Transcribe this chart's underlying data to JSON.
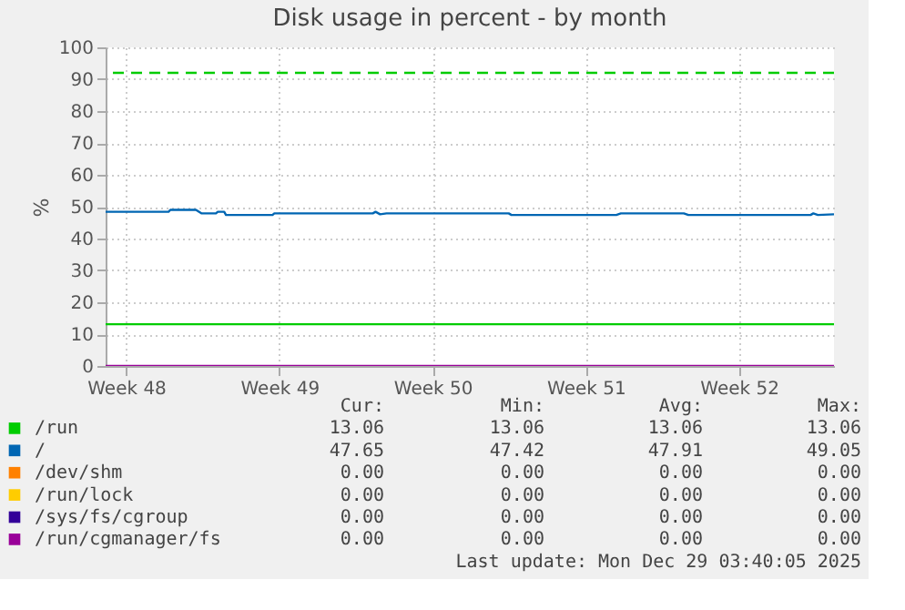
{
  "chart_data": {
    "type": "line",
    "title": "Disk usage in percent - by month",
    "ylabel": "%",
    "xlim": [
      "2025-11-25T21:00",
      "2025-12-29T03:40"
    ],
    "xticks": [
      {
        "value": "2025-11-26T19:30",
        "label": "Week 48"
      },
      {
        "value": "2025-12-03T19:30",
        "label": "Week 49"
      },
      {
        "value": "2025-12-10T19:30",
        "label": "Week 50"
      },
      {
        "value": "2025-12-17T19:30",
        "label": "Week 51"
      },
      {
        "value": "2025-12-24T19:30",
        "label": "Week 52"
      }
    ],
    "ylim": [
      0,
      100
    ],
    "yticks": [
      0,
      10,
      20,
      30,
      40,
      50,
      60,
      70,
      80,
      90,
      100
    ],
    "grid": true,
    "legend": "bottom",
    "series": [
      {
        "name": "/run",
        "color": "#00cc00",
        "x": [
          "2025-11-25T21:00",
          "2025-12-29T03:40"
        ],
        "values": [
          13.1,
          13.1
        ]
      },
      {
        "name": "/",
        "color": "#0066b3",
        "x": [
          "2025-11-25T21:00",
          "2025-11-28T18:00",
          "2025-11-28T20:00",
          "2025-11-30T00:00",
          "2025-11-30T06:00",
          "2025-11-30T22:00",
          "2025-12-01T00:00",
          "2025-12-01T07:00",
          "2025-12-01T09:00",
          "2025-12-03T12:00",
          "2025-12-03T14:00",
          "2025-12-08T02:00",
          "2025-12-08T05:00",
          "2025-12-08T10:00",
          "2025-12-08T17:00",
          "2025-12-14T07:00",
          "2025-12-14T10:00",
          "2025-12-19T05:00",
          "2025-12-19T10:00",
          "2025-12-22T07:00",
          "2025-12-22T12:00",
          "2025-12-28T02:00",
          "2025-12-28T05:00",
          "2025-12-28T10:00",
          "2025-12-29T03:40"
        ],
        "values": [
          48.4,
          48.4,
          49.0,
          49.0,
          47.9,
          47.9,
          48.4,
          48.4,
          47.4,
          47.4,
          47.9,
          47.9,
          48.4,
          47.6,
          47.9,
          47.9,
          47.4,
          47.4,
          47.9,
          47.9,
          47.4,
          47.4,
          47.9,
          47.4,
          47.6
        ]
      },
      {
        "name": "/dev/shm",
        "color": "#ff8000"
      },
      {
        "name": "/run/lock",
        "color": "#ffcc00"
      },
      {
        "name": "/sys/fs/cgroup",
        "color": "#330099"
      },
      {
        "name": "/run/cgmanager/fs",
        "color": "#990099",
        "x": [
          "2025-11-25T21:00",
          "2025-12-29T03:40"
        ],
        "values": [
          0,
          0
        ]
      }
    ],
    "ref_lines": [
      {
        "axis": "y",
        "value": 92,
        "color": "#00cc00",
        "line_style": "dashed"
      }
    ],
    "annotations": [
      "Cur:",
      "Min:",
      "Avg:",
      "Max:",
      "13.06",
      "13.06",
      "13.06",
      "13.06",
      "47.65",
      "47.42",
      "47.91",
      "49.05",
      "0.00",
      "0.00",
      "0.00",
      "0.00",
      "0.00",
      "0.00",
      "0.00",
      "0.00",
      "0.00",
      "0.00",
      "0.00",
      "0.00",
      "0.00",
      "0.00",
      "0.00",
      "0.00",
      "Last update: Mon Dec 29 03:40:05 2025"
    ]
  }
}
